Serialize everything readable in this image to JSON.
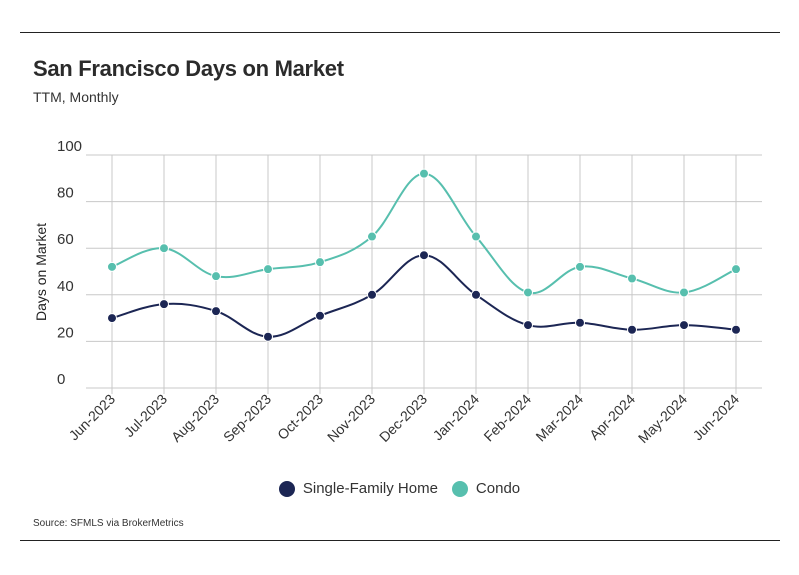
{
  "header": {
    "title": "San Francisco Days on Market",
    "subtitle": "TTM, Monthly"
  },
  "footer": {
    "source": "Source:  SFMLS via BrokerMetrics"
  },
  "colors": {
    "single_family": "#1c2654",
    "condo": "#57bfae",
    "grid": "#c8c8c8"
  },
  "chart_data": {
    "type": "line",
    "title": "San Francisco Days on Market",
    "subtitle": "TTM, Monthly",
    "xlabel": "",
    "ylabel": "Days on Market",
    "ylim": [
      0,
      100
    ],
    "yticks": [
      0,
      20,
      40,
      60,
      80,
      100
    ],
    "ytick_labels": [
      "0",
      "20",
      "40",
      "60",
      "80",
      "100"
    ],
    "grid": true,
    "legend_position": "bottom-center",
    "categories": [
      "Jun-2023",
      "Jul-2023",
      "Aug-2023",
      "Sep-2023",
      "Oct-2023",
      "Nov-2023",
      "Dec-2023",
      "Jan-2024",
      "Feb-2024",
      "Mar-2024",
      "Apr-2024",
      "May-2024",
      "Jun-2024"
    ],
    "series": [
      {
        "name": "Single-Family Home",
        "color": "#1c2654",
        "values": [
          30,
          36,
          33,
          22,
          31,
          40,
          57,
          40,
          27,
          28,
          25,
          27,
          25
        ]
      },
      {
        "name": "Condo",
        "color": "#57bfae",
        "values": [
          52,
          60,
          48,
          51,
          54,
          65,
          92,
          65,
          41,
          52,
          47,
          41,
          51
        ]
      }
    ]
  }
}
